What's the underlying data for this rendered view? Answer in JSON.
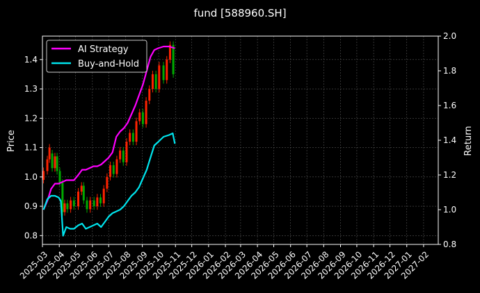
{
  "chart_data": {
    "type": "line",
    "title": "fund [588960.SH]",
    "ylabel_left": "Price",
    "ylabel_right": "Return",
    "x_range": [
      "2025-03-01",
      "2027-02-28"
    ],
    "x_ticks": [
      "2025-03",
      "2025-04",
      "2025-05",
      "2025-06",
      "2025-07",
      "2025-08",
      "2025-09",
      "2025-10",
      "2025-11",
      "2025-12",
      "2026-01",
      "2026-02",
      "2026-03",
      "2026-04",
      "2026-05",
      "2026-06",
      "2026-07",
      "2026-08",
      "2026-09",
      "2026-10",
      "2026-11",
      "2026-12",
      "2027-01",
      "2027-02"
    ],
    "y_left": {
      "range": [
        0.77,
        1.48
      ],
      "ticks": [
        "0.8",
        "0.9",
        "1.0",
        "1.1",
        "1.2",
        "1.3",
        "1.4"
      ]
    },
    "y_right": {
      "range": [
        0.8,
        2.0
      ],
      "ticks": [
        "0.8",
        "1.0",
        "1.2",
        "1.4",
        "1.6",
        "1.8",
        "2.0"
      ]
    },
    "grid": true,
    "legend_position": "upper-left",
    "series": [
      {
        "name": "AI Strategy",
        "color": "#ff00ff",
        "axis": "right",
        "points": [
          [
            "2025-03-03",
            1.0
          ],
          [
            "2025-03-10",
            1.05
          ],
          [
            "2025-03-17",
            1.12
          ],
          [
            "2025-03-24",
            1.15
          ],
          [
            "2025-03-31",
            1.15
          ],
          [
            "2025-04-07",
            1.16
          ],
          [
            "2025-04-14",
            1.17
          ],
          [
            "2025-04-21",
            1.17
          ],
          [
            "2025-04-28",
            1.17
          ],
          [
            "2025-05-06",
            1.2
          ],
          [
            "2025-05-13",
            1.23
          ],
          [
            "2025-05-20",
            1.23
          ],
          [
            "2025-05-27",
            1.24
          ],
          [
            "2025-06-03",
            1.25
          ],
          [
            "2025-06-10",
            1.25
          ],
          [
            "2025-06-17",
            1.26
          ],
          [
            "2025-06-24",
            1.28
          ],
          [
            "2025-07-01",
            1.3
          ],
          [
            "2025-07-08",
            1.33
          ],
          [
            "2025-07-15",
            1.42
          ],
          [
            "2025-07-22",
            1.45
          ],
          [
            "2025-07-29",
            1.47
          ],
          [
            "2025-08-05",
            1.5
          ],
          [
            "2025-08-12",
            1.55
          ],
          [
            "2025-08-19",
            1.6
          ],
          [
            "2025-08-26",
            1.66
          ],
          [
            "2025-09-02",
            1.72
          ],
          [
            "2025-09-09",
            1.8
          ],
          [
            "2025-09-16",
            1.88
          ],
          [
            "2025-09-23",
            1.92
          ],
          [
            "2025-09-30",
            1.93
          ],
          [
            "2025-10-10",
            1.94
          ],
          [
            "2025-10-20",
            1.94
          ],
          [
            "2025-10-31",
            1.93
          ]
        ]
      },
      {
        "name": "Buy-and-Hold",
        "color": "#00e5ee",
        "axis": "right",
        "points": [
          [
            "2025-03-03",
            1.0
          ],
          [
            "2025-03-10",
            1.06
          ],
          [
            "2025-03-17",
            1.08
          ],
          [
            "2025-03-24",
            1.08
          ],
          [
            "2025-03-31",
            1.07
          ],
          [
            "2025-04-04",
            1.05
          ],
          [
            "2025-04-08",
            0.85
          ],
          [
            "2025-04-14",
            0.9
          ],
          [
            "2025-04-21",
            0.89
          ],
          [
            "2025-04-28",
            0.89
          ],
          [
            "2025-05-06",
            0.91
          ],
          [
            "2025-05-13",
            0.92
          ],
          [
            "2025-05-20",
            0.89
          ],
          [
            "2025-05-27",
            0.9
          ],
          [
            "2025-06-03",
            0.91
          ],
          [
            "2025-06-10",
            0.92
          ],
          [
            "2025-06-17",
            0.9
          ],
          [
            "2025-06-24",
            0.93
          ],
          [
            "2025-07-01",
            0.96
          ],
          [
            "2025-07-08",
            0.98
          ],
          [
            "2025-07-15",
            0.99
          ],
          [
            "2025-07-22",
            1.0
          ],
          [
            "2025-07-29",
            1.02
          ],
          [
            "2025-08-05",
            1.05
          ],
          [
            "2025-08-12",
            1.08
          ],
          [
            "2025-08-19",
            1.1
          ],
          [
            "2025-08-26",
            1.13
          ],
          [
            "2025-09-02",
            1.18
          ],
          [
            "2025-09-09",
            1.23
          ],
          [
            "2025-09-16",
            1.3
          ],
          [
            "2025-09-23",
            1.37
          ],
          [
            "2025-09-30",
            1.39
          ],
          [
            "2025-10-10",
            1.42
          ],
          [
            "2025-10-20",
            1.43
          ],
          [
            "2025-10-27",
            1.44
          ],
          [
            "2025-10-31",
            1.38
          ]
        ]
      }
    ],
    "price_candles": {
      "axis": "left",
      "up_color": "#ff2200",
      "down_color": "#00aa00",
      "bars": [
        [
          "2025-03-03",
          0.99,
          1.02
        ],
        [
          "2025-03-10",
          1.02,
          1.06
        ],
        [
          "2025-03-14",
          1.06,
          1.1
        ],
        [
          "2025-03-19",
          1.08,
          1.03
        ],
        [
          "2025-03-24",
          1.03,
          1.07
        ],
        [
          "2025-03-28",
          1.07,
          1.02
        ],
        [
          "2025-04-02",
          1.02,
          0.98
        ],
        [
          "2025-04-07",
          0.98,
          0.88
        ],
        [
          "2025-04-11",
          0.88,
          0.91
        ],
        [
          "2025-04-16",
          0.91,
          0.89
        ],
        [
          "2025-04-22",
          0.89,
          0.92
        ],
        [
          "2025-04-28",
          0.92,
          0.9
        ],
        [
          "2025-05-06",
          0.9,
          0.95
        ],
        [
          "2025-05-12",
          0.95,
          0.97
        ],
        [
          "2025-05-16",
          0.97,
          0.92
        ],
        [
          "2025-05-22",
          0.92,
          0.89
        ],
        [
          "2025-05-28",
          0.89,
          0.92
        ],
        [
          "2025-06-04",
          0.92,
          0.9
        ],
        [
          "2025-06-10",
          0.9,
          0.93
        ],
        [
          "2025-06-16",
          0.93,
          0.91
        ],
        [
          "2025-06-22",
          0.91,
          0.96
        ],
        [
          "2025-06-28",
          0.96,
          1.0
        ],
        [
          "2025-07-04",
          1.0,
          1.04
        ],
        [
          "2025-07-10",
          1.04,
          1.01
        ],
        [
          "2025-07-16",
          1.01,
          1.06
        ],
        [
          "2025-07-22",
          1.06,
          1.09
        ],
        [
          "2025-07-28",
          1.09,
          1.05
        ],
        [
          "2025-08-03",
          1.05,
          1.12
        ],
        [
          "2025-08-09",
          1.12,
          1.15
        ],
        [
          "2025-08-15",
          1.15,
          1.12
        ],
        [
          "2025-08-21",
          1.12,
          1.19
        ],
        [
          "2025-08-27",
          1.19,
          1.22
        ],
        [
          "2025-09-02",
          1.22,
          1.18
        ],
        [
          "2025-09-08",
          1.18,
          1.26
        ],
        [
          "2025-09-14",
          1.26,
          1.3
        ],
        [
          "2025-09-20",
          1.3,
          1.35
        ],
        [
          "2025-09-26",
          1.35,
          1.3
        ],
        [
          "2025-10-02",
          1.3,
          1.38
        ],
        [
          "2025-10-10",
          1.38,
          1.33
        ],
        [
          "2025-10-16",
          1.33,
          1.4
        ],
        [
          "2025-10-22",
          1.4,
          1.45
        ],
        [
          "2025-10-28",
          1.45,
          1.35
        ]
      ]
    }
  }
}
